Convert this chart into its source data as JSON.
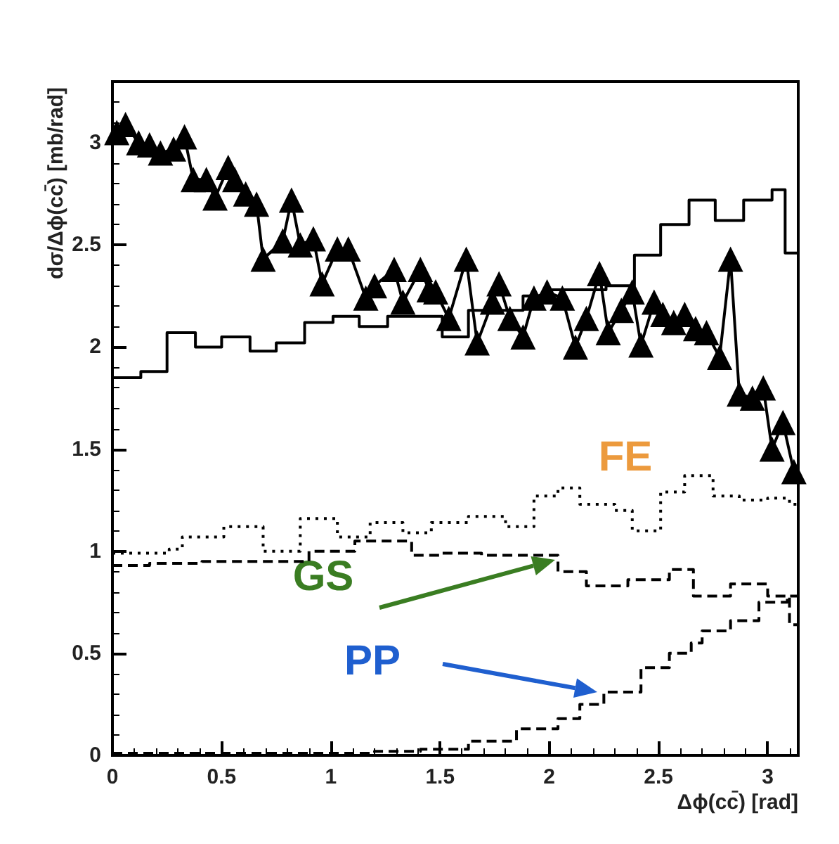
{
  "chart_data": {
    "type": "step",
    "xlabel": "Δϕ(cc̄) [rad]",
    "ylabel": "dσ/Δϕ(cc̄) [mb/rad]",
    "annotations": [
      "FE",
      "GS",
      "PP"
    ],
    "xlim": [
      0,
      3.14
    ],
    "xticks": [
      0,
      0.5,
      1,
      1.5,
      2,
      2.5,
      3
    ],
    "ylim": [
      0,
      3.3
    ],
    "yticks": [
      0,
      0.5,
      1,
      1.5,
      2,
      2.5,
      3
    ],
    "series": [
      {
        "color": "#000000",
        "line_style": "solid",
        "x": [
          0,
          0.13,
          0.25,
          0.38,
          0.5,
          0.63,
          0.75,
          0.88,
          1.01,
          1.13,
          1.26,
          1.38,
          1.51,
          1.63,
          1.76,
          1.88,
          2.01,
          2.14,
          2.26,
          2.39,
          2.51,
          2.64,
          2.76,
          2.89,
          3.02,
          3.08,
          3.14
        ],
        "values": [
          1.85,
          1.88,
          2.07,
          2.0,
          2.05,
          1.98,
          2.02,
          2.12,
          2.15,
          2.1,
          2.15,
          2.15,
          2.05,
          2.18,
          2.18,
          2.25,
          2.28,
          2.28,
          2.3,
          2.45,
          2.6,
          2.72,
          2.62,
          2.72,
          2.77,
          2.46,
          2.46
        ]
      },
      {
        "type": "line",
        "color": "#000000",
        "line_style": "solid",
        "marker": "triangle",
        "x": [
          0.02,
          0.06,
          0.12,
          0.17,
          0.22,
          0.28,
          0.33,
          0.37,
          0.43,
          0.47,
          0.53,
          0.56,
          0.61,
          0.66,
          0.69,
          0.78,
          0.82,
          0.86,
          0.92,
          0.96,
          1.03,
          1.08,
          1.16,
          1.2,
          1.29,
          1.33,
          1.41,
          1.45,
          1.48,
          1.54,
          1.62,
          1.67,
          1.74,
          1.77,
          1.82,
          1.88,
          1.93,
          1.99,
          2.06,
          2.12,
          2.17,
          2.23,
          2.27,
          2.33,
          2.38,
          2.42,
          2.48,
          2.52,
          2.57,
          2.62,
          2.67,
          2.72,
          2.78,
          2.83,
          2.87,
          2.93,
          2.98,
          3.02,
          3.07,
          3.12
        ],
        "values": [
          3.05,
          3.09,
          3.0,
          2.99,
          2.95,
          2.97,
          3.03,
          2.82,
          2.82,
          2.73,
          2.88,
          2.82,
          2.75,
          2.7,
          2.43,
          2.52,
          2.72,
          2.5,
          2.53,
          2.31,
          2.48,
          2.48,
          2.24,
          2.3,
          2.38,
          2.22,
          2.38,
          2.28,
          2.27,
          2.14,
          2.43,
          2.02,
          2.22,
          2.31,
          2.14,
          2.05,
          2.24,
          2.27,
          2.24,
          2.0,
          2.14,
          2.36,
          2.07,
          2.18,
          2.27,
          2.01,
          2.22,
          2.16,
          2.12,
          2.16,
          2.09,
          2.07,
          1.95,
          2.43,
          1.77,
          1.75,
          1.8,
          1.5,
          1.63,
          1.39
        ]
      },
      {
        "color": "#000000",
        "line_style": "dotted",
        "x": [
          0,
          0.26,
          0.32,
          0.51,
          0.69,
          0.86,
          1.03,
          1.18,
          1.33,
          1.46,
          1.63,
          1.8,
          1.93,
          2.04,
          2.14,
          2.3,
          2.38,
          2.51,
          2.62,
          2.75,
          2.87,
          3.0,
          3.1,
          3.14
        ],
        "values": [
          0.99,
          1.01,
          1.07,
          1.12,
          1.0,
          1.16,
          1.07,
          1.14,
          1.09,
          1.14,
          1.17,
          1.12,
          1.27,
          1.31,
          1.23,
          1.2,
          1.1,
          1.29,
          1.37,
          1.27,
          1.25,
          1.26,
          1.23,
          1.23
        ]
      },
      {
        "color": "#000000",
        "line_style": "dashed",
        "x": [
          0,
          0.17,
          0.41,
          0.64,
          0.9,
          1.11,
          1.37,
          1.5,
          1.69,
          1.91,
          2.04,
          2.17,
          2.36,
          2.55,
          2.66,
          2.83,
          3.0,
          3.1,
          3.14
        ],
        "values": [
          0.93,
          0.94,
          0.95,
          0.95,
          1.0,
          1.05,
          0.98,
          0.99,
          0.98,
          0.98,
          0.9,
          0.83,
          0.86,
          0.91,
          0.78,
          0.84,
          0.78,
          0.64,
          0.64
        ]
      },
      {
        "color": "#000000",
        "line_style": "dashed",
        "x": [
          0,
          0.3,
          0.6,
          0.9,
          1.2,
          1.41,
          1.63,
          1.85,
          2.04,
          2.14,
          2.25,
          2.42,
          2.55,
          2.65,
          2.7,
          2.83,
          2.96,
          3.09,
          3.14
        ],
        "values": [
          0.01,
          0.01,
          0.01,
          0.01,
          0.02,
          0.03,
          0.07,
          0.13,
          0.18,
          0.25,
          0.31,
          0.43,
          0.5,
          0.55,
          0.61,
          0.66,
          0.75,
          0.78,
          0.78
        ]
      }
    ]
  }
}
